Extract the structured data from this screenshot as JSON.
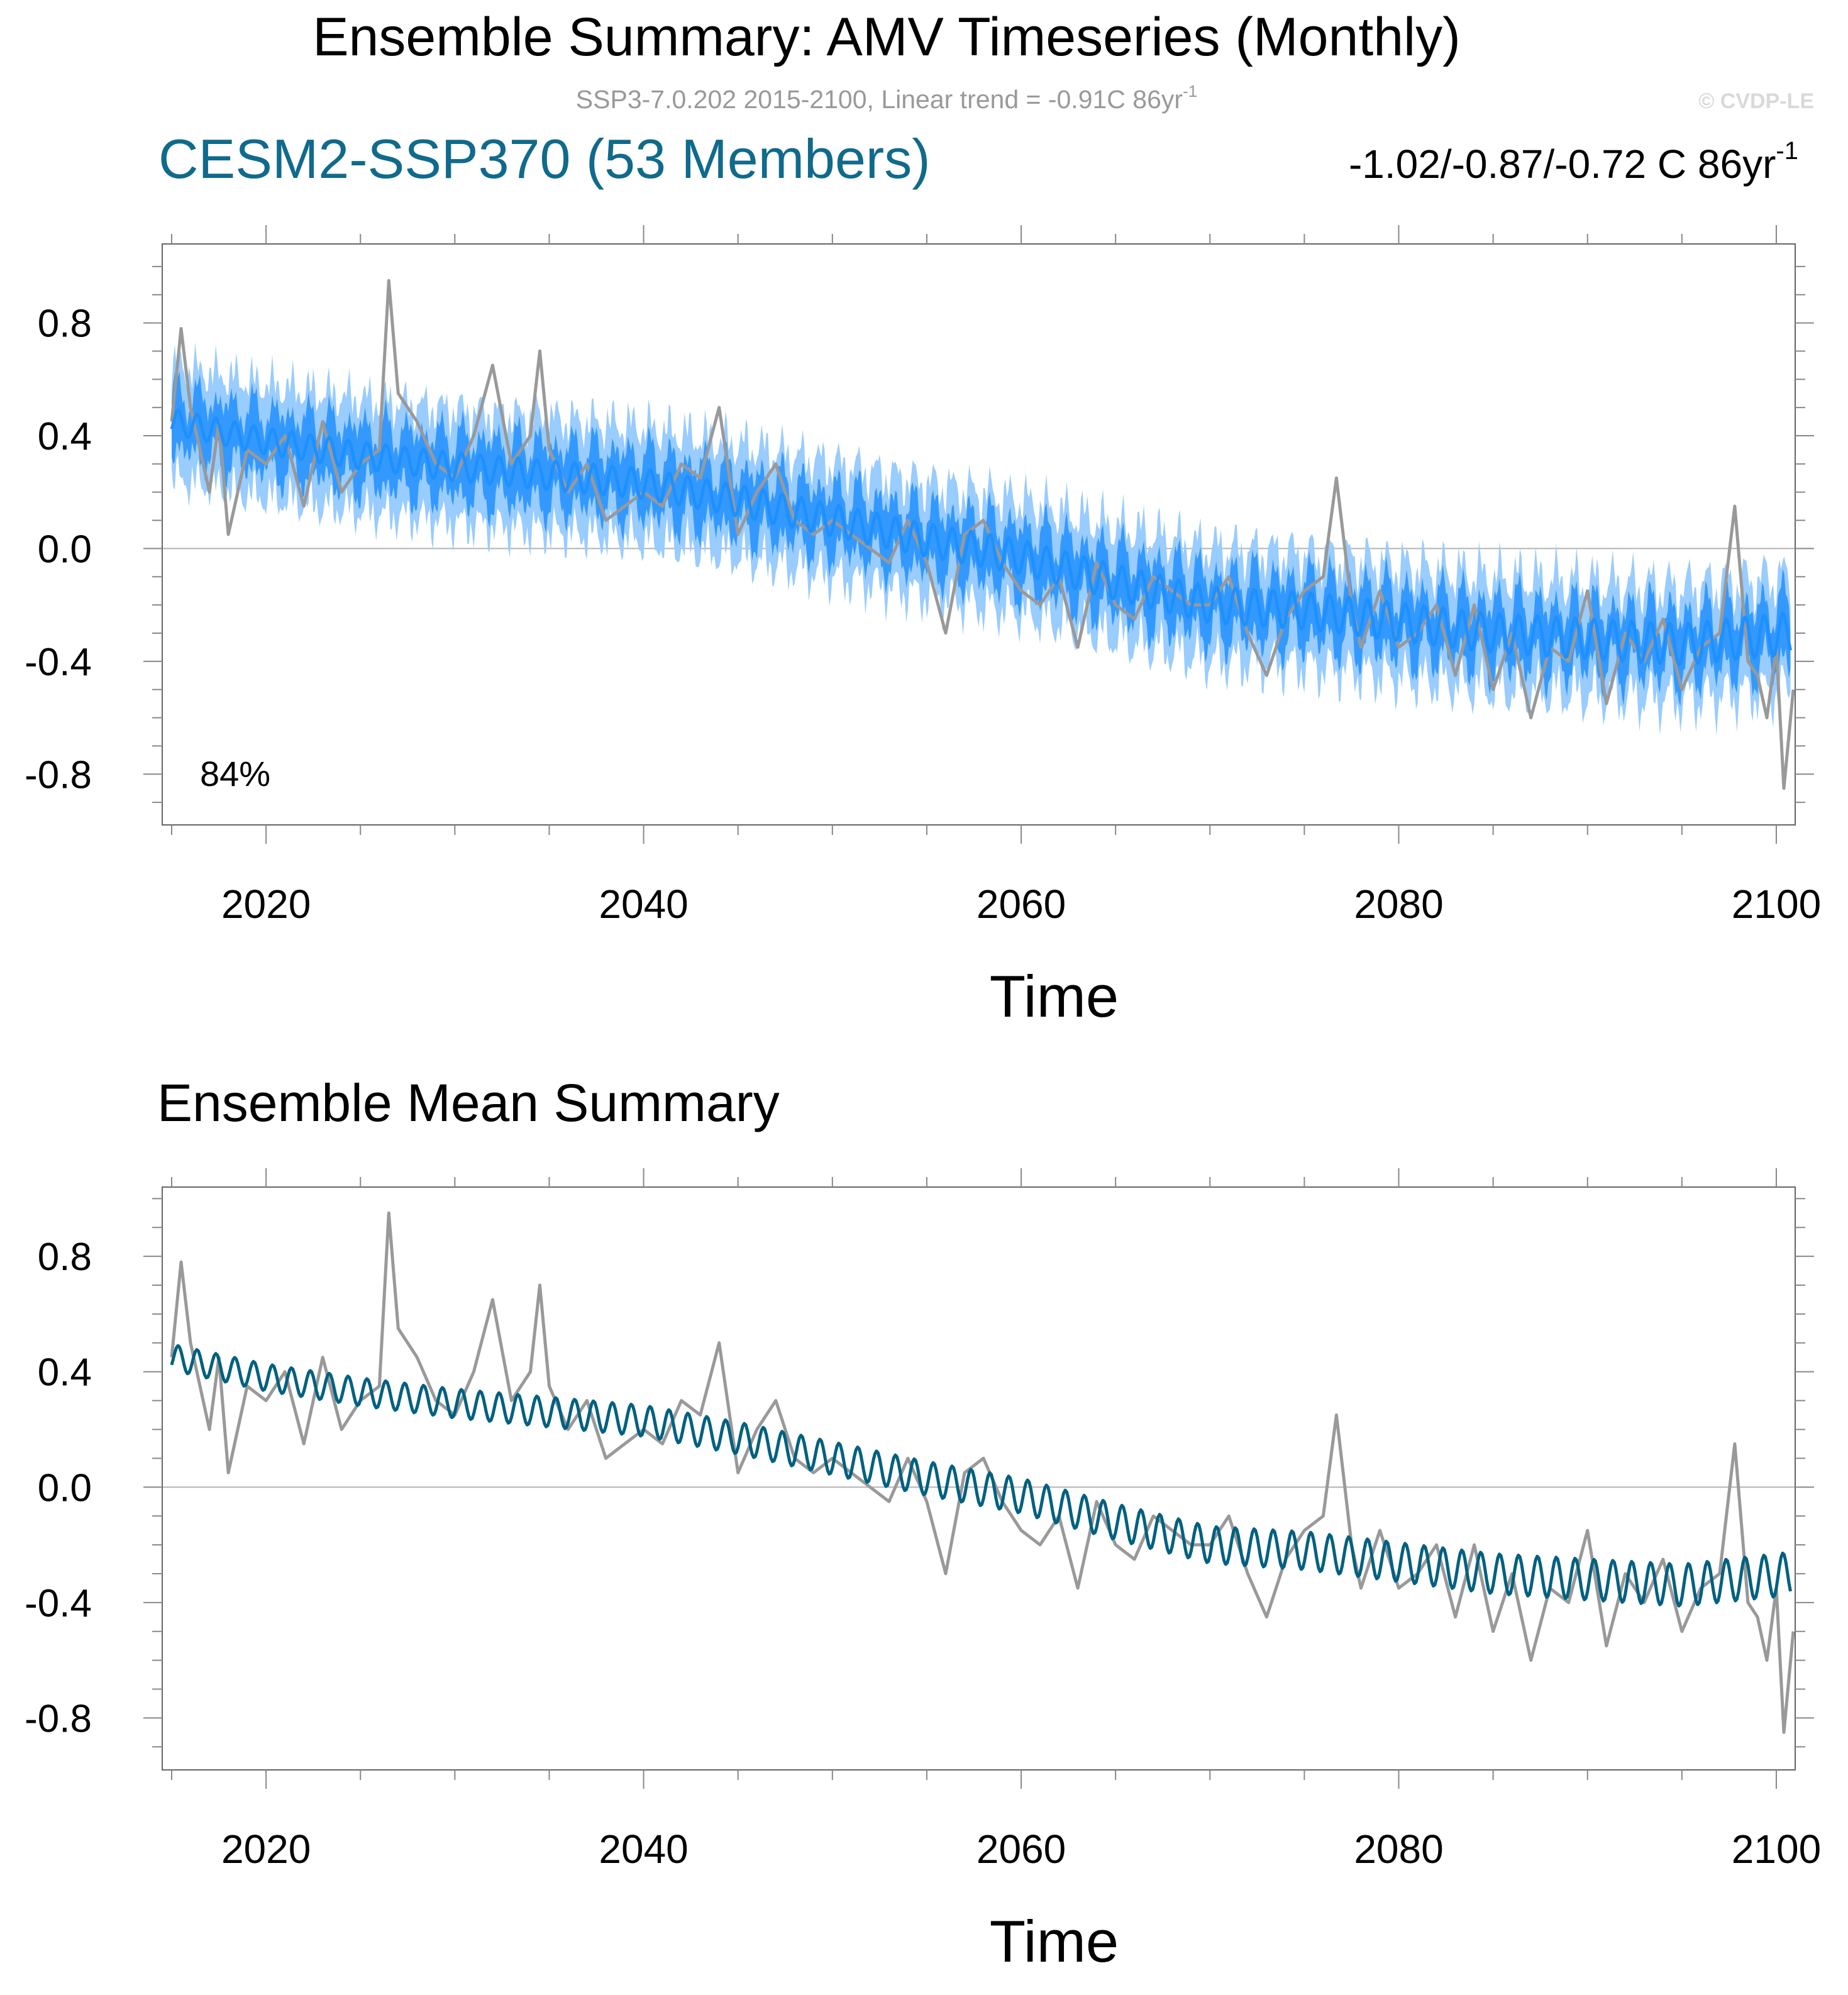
{
  "figure": {
    "title": "Ensemble Summary: AMV Timeseries (Monthly)",
    "subtitle_main": "SSP3-7.0.202 2015-2100, Linear trend = -0.91C 86yr",
    "subtitle_sup": "-1",
    "credit": "© CVDP-LE"
  },
  "colors": {
    "obs": "#999999",
    "ens_mean_top": "#1e90ff",
    "inner_band": "#3399ff",
    "outer_band": "#99ccff",
    "ens_mean_bottom": "#006080",
    "model_label": "#106a8c",
    "zero_line": "#b3b3b3"
  },
  "chart_data": [
    {
      "type": "line",
      "panel_title": "CESM2-SSP370 (53 Members)",
      "trend_label": "-1.02/-0.87/-0.72 C 86yr",
      "trend_sup": "-1",
      "percent_label": "84%",
      "xlabel": "Time",
      "ylabel": "",
      "xlim": [
        2014.5,
        2101.0
      ],
      "ylim": [
        -0.98,
        1.08
      ],
      "xticks": [
        2020,
        2040,
        2060,
        2080,
        2100
      ],
      "yticks": [
        0.8,
        0.4,
        0.0,
        -0.4,
        -0.8
      ],
      "ytick_labels": [
        "0.8",
        "0.4",
        "0.0",
        "-0.4",
        "-0.8"
      ],
      "xtick_labels": [
        "2020",
        "2040",
        "2060",
        "2080",
        "2100"
      ],
      "series": [
        {
          "name": "Outer spread band (range)",
          "kind": "band",
          "half_width": 0.2
        },
        {
          "name": "Inner spread band (10-90%)",
          "kind": "band",
          "half_width": 0.1
        },
        {
          "name": "Observations",
          "x": [
            2015.0,
            2015.5,
            2016.0,
            2017.0,
            2017.5,
            2018.0,
            2019.0,
            2020.0,
            2021.0,
            2022.0,
            2023.0,
            2024.0,
            2025.0,
            2026.0,
            2026.5,
            2027.0,
            2028.0,
            2029.0,
            2030.0,
            2031.0,
            2032.0,
            2033.0,
            2034.0,
            2034.5,
            2035.0,
            2036.0,
            2037.0,
            2038.0,
            2039.0,
            2040.0,
            2041.0,
            2042.0,
            2043.0,
            2044.0,
            2045.0,
            2046.0,
            2047.0,
            2048.0,
            2049.0,
            2050.0,
            2051.0,
            2052.0,
            2053.0,
            2054.0,
            2055.0,
            2056.0,
            2057.0,
            2058.0,
            2059.0,
            2060.0,
            2061.0,
            2062.0,
            2063.0,
            2064.0,
            2065.0,
            2066.0,
            2067.0,
            2068.0,
            2069.0,
            2070.0,
            2071.0,
            2072.0,
            2073.0,
            2074.0,
            2075.0,
            2076.0,
            2076.7,
            2077.5,
            2078.0,
            2079.0,
            2080.0,
            2081.0,
            2082.0,
            2083.0,
            2084.0,
            2085.0,
            2086.0,
            2087.0,
            2088.0,
            2089.0,
            2090.0,
            2091.0,
            2092.0,
            2093.0,
            2094.0,
            2095.0,
            2096.0,
            2097.0,
            2097.8,
            2098.5,
            2099.0,
            2099.5,
            2100.0,
            2100.4,
            2100.9
          ],
          "y": [
            0.45,
            0.78,
            0.5,
            0.2,
            0.45,
            0.05,
            0.35,
            0.3,
            0.4,
            0.15,
            0.45,
            0.2,
            0.3,
            0.35,
            0.95,
            0.55,
            0.45,
            0.3,
            0.25,
            0.4,
            0.65,
            0.3,
            0.4,
            0.7,
            0.35,
            0.2,
            0.3,
            0.1,
            0.15,
            0.2,
            0.15,
            0.3,
            0.25,
            0.5,
            0.05,
            0.2,
            0.3,
            0.1,
            0.05,
            0.1,
            0.05,
            0.0,
            -0.05,
            0.1,
            -0.05,
            -0.3,
            0.05,
            0.1,
            -0.05,
            -0.15,
            -0.2,
            -0.1,
            -0.35,
            -0.05,
            -0.2,
            -0.25,
            -0.1,
            -0.15,
            -0.2,
            -0.2,
            -0.1,
            -0.3,
            -0.45,
            -0.25,
            -0.15,
            -0.1,
            0.25,
            -0.2,
            -0.35,
            -0.15,
            -0.35,
            -0.3,
            -0.2,
            -0.45,
            -0.2,
            -0.5,
            -0.3,
            -0.6,
            -0.35,
            -0.4,
            -0.15,
            -0.55,
            -0.3,
            -0.4,
            -0.25,
            -0.5,
            -0.35,
            -0.3,
            0.15,
            -0.4,
            -0.45,
            -0.6,
            -0.35,
            -0.85,
            -0.5
          ]
        },
        {
          "name": "Ensemble mean",
          "x": [
            2015,
            2020,
            2025,
            2030,
            2035,
            2040,
            2045,
            2050,
            2055,
            2060,
            2065,
            2070,
            2075,
            2080,
            2085,
            2090,
            2095,
            2100.8
          ],
          "y": [
            0.45,
            0.38,
            0.33,
            0.29,
            0.26,
            0.23,
            0.17,
            0.1,
            0.03,
            -0.03,
            -0.12,
            -0.2,
            -0.22,
            -0.26,
            -0.3,
            -0.32,
            -0.34,
            -0.3
          ]
        }
      ]
    },
    {
      "type": "line",
      "panel_title": "Ensemble Mean Summary",
      "xlabel": "Time",
      "ylabel": "",
      "xlim": [
        2014.5,
        2101.0
      ],
      "ylim": [
        -0.98,
        1.04
      ],
      "xticks": [
        2020,
        2040,
        2060,
        2080,
        2100
      ],
      "yticks": [
        0.8,
        0.4,
        0.0,
        -0.4,
        -0.8
      ],
      "ytick_labels": [
        "0.8",
        "0.4",
        "0.0",
        "-0.4",
        "-0.8"
      ],
      "xtick_labels": [
        "2020",
        "2040",
        "2060",
        "2080",
        "2100"
      ],
      "series": [
        {
          "name": "Observations",
          "same_as_panel": 0
        },
        {
          "name": "Ensemble mean",
          "same_as_panel": 0
        }
      ]
    }
  ]
}
